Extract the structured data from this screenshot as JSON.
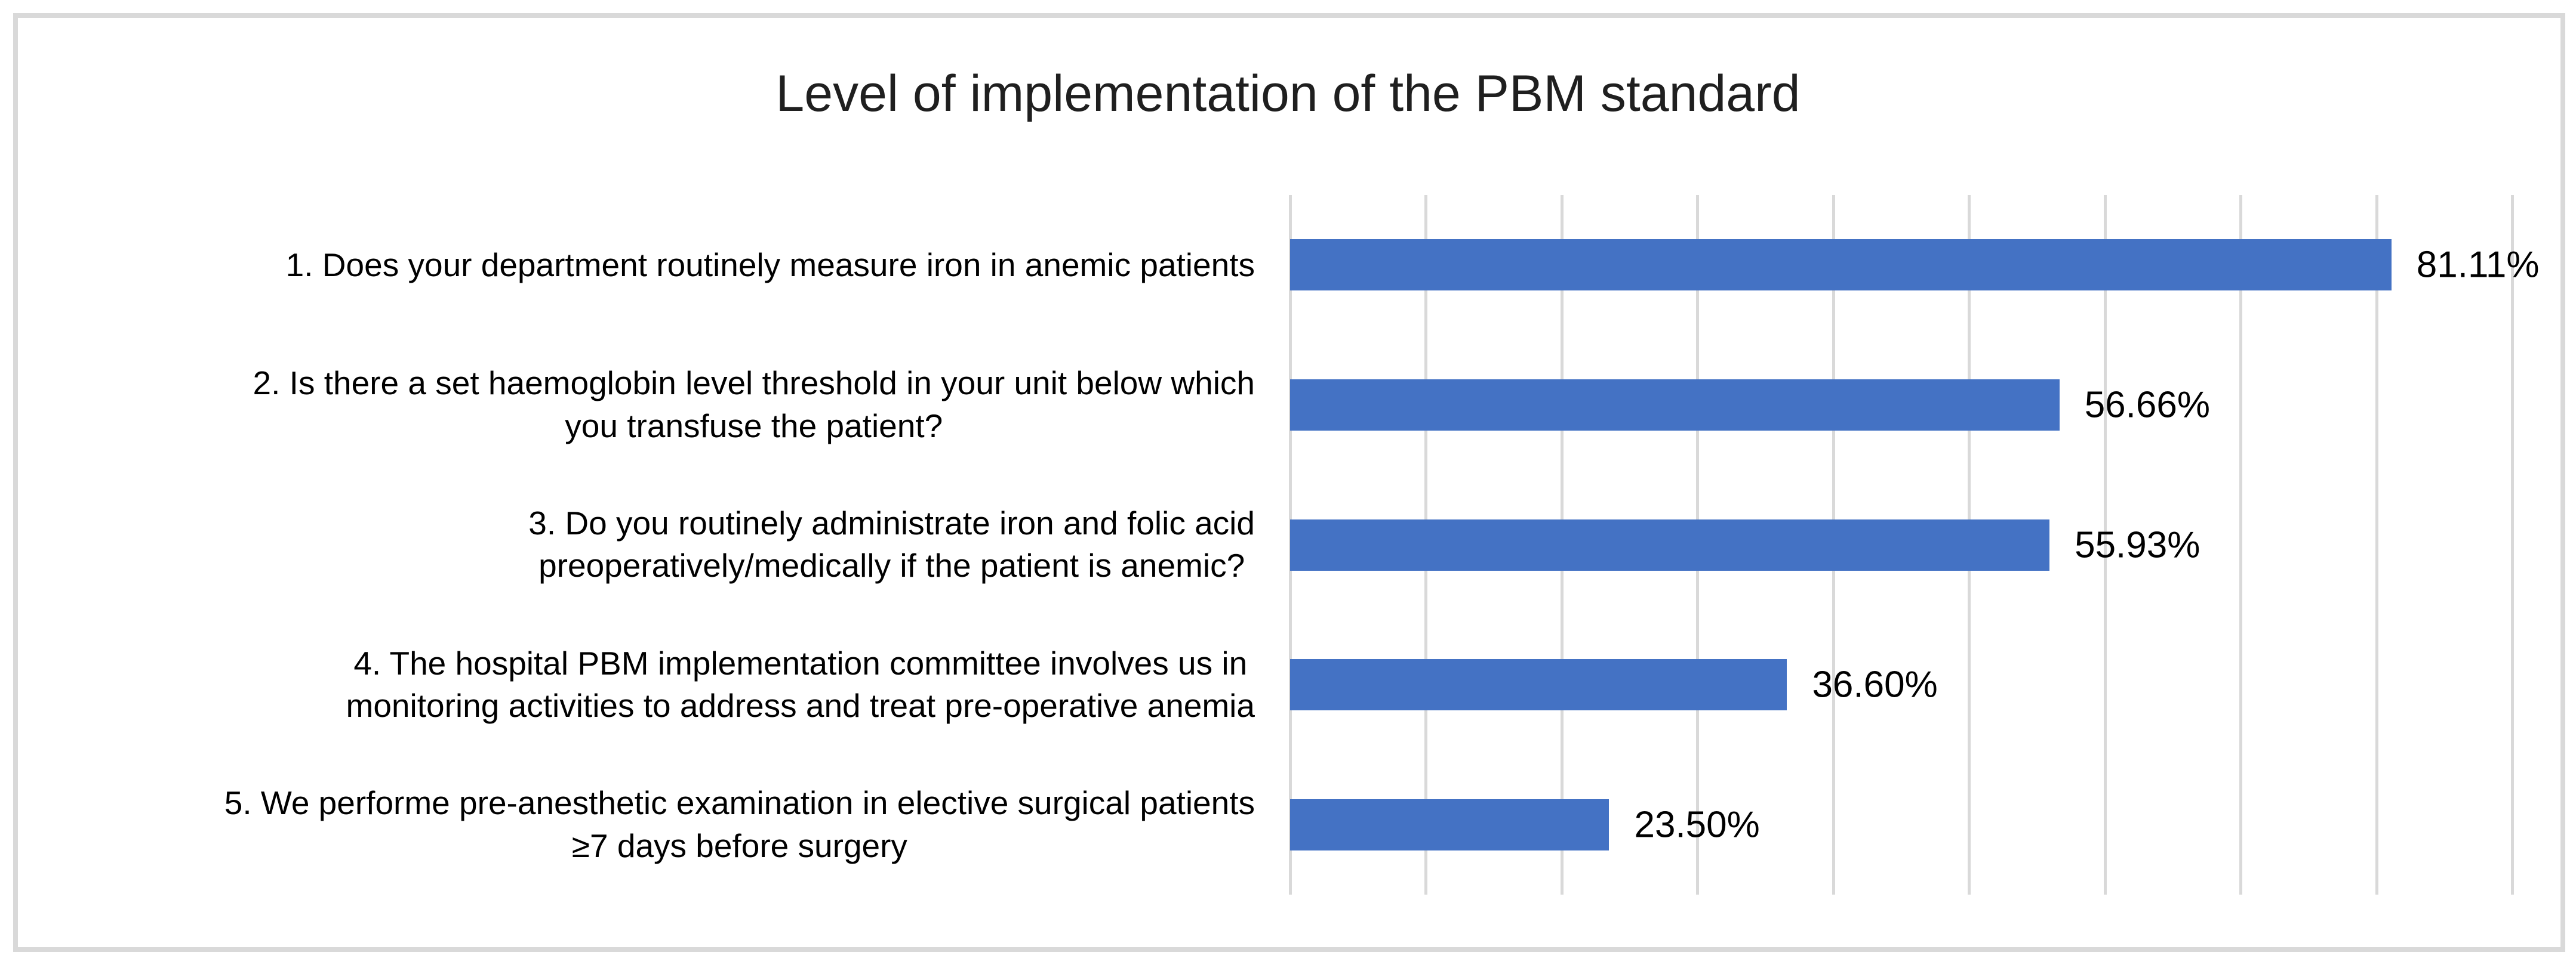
{
  "chart_data": {
    "type": "bar",
    "orientation": "horizontal",
    "title": "Level of implementation of the PBM standard",
    "categories": [
      "1. Does your department routinely measure iron in anemic patients",
      "2. Is there a set haemoglobin level threshold in your unit below which\nyou transfuse the patient?",
      "3. Do you routinely administrate iron and folic acid\npreoperatively/medically if the patient is anemic?",
      "4. The hospital PBM implementation committee involves us in\nmonitoring activities to address and treat pre-operative anemia",
      "5. We performe pre-anesthetic examination in elective surgical patients\n≥7 days before surgery"
    ],
    "values": [
      81.11,
      56.66,
      55.93,
      36.6,
      23.5
    ],
    "value_labels": [
      "81.11%",
      "56.66%",
      "55.93%",
      "36.60%",
      "23.50%"
    ],
    "xlabel": "",
    "ylabel": "",
    "xlim": [
      0,
      90
    ],
    "gridline_interval": 10,
    "grid": true,
    "legend_position": "none",
    "bar_color": "#4472C4",
    "gridline_color": "#D9D9D9",
    "frame_color": "#D9D9D9",
    "title_color": "#1F1F1F",
    "label_color": "#000000"
  }
}
